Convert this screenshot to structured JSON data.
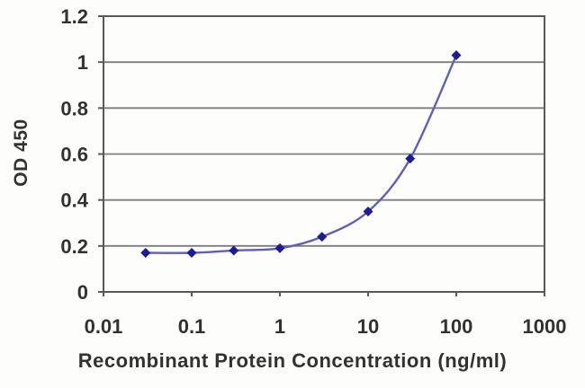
{
  "figure": {
    "background": "#fdfdfb"
  },
  "chart_data": {
    "type": "line",
    "title": "",
    "xlabel": "Recombinant Protein Concentration (ng/ml)",
    "ylabel": "OD 450",
    "x_scale": "log",
    "xlim": [
      0.01,
      1000
    ],
    "ylim": [
      0,
      1.2
    ],
    "x_ticks": {
      "values": [
        0.01,
        0.1,
        1,
        10,
        100,
        1000
      ],
      "labels": [
        "0.01",
        "0.1",
        "1",
        "10",
        "100",
        "1000"
      ]
    },
    "y_ticks": {
      "values": [
        0,
        0.2,
        0.4,
        0.6,
        0.8,
        1,
        1.2
      ],
      "labels": [
        "0",
        "0.2",
        "0.4",
        "0.6",
        "0.8",
        "1",
        "1.2"
      ]
    },
    "grid": "horizontal",
    "legend": "none",
    "series": [
      {
        "name": "OD 450",
        "marker": "diamond",
        "x": [
          0.03,
          0.1,
          0.3,
          1,
          3,
          10,
          30,
          100
        ],
        "y": [
          0.17,
          0.17,
          0.18,
          0.19,
          0.24,
          0.35,
          0.58,
          1.03
        ]
      }
    ],
    "colors": {
      "line": "#6060b8",
      "marker": "#1c1c96",
      "grid": "#7d7d7d",
      "axis": "#595959",
      "text": "#323232"
    }
  }
}
